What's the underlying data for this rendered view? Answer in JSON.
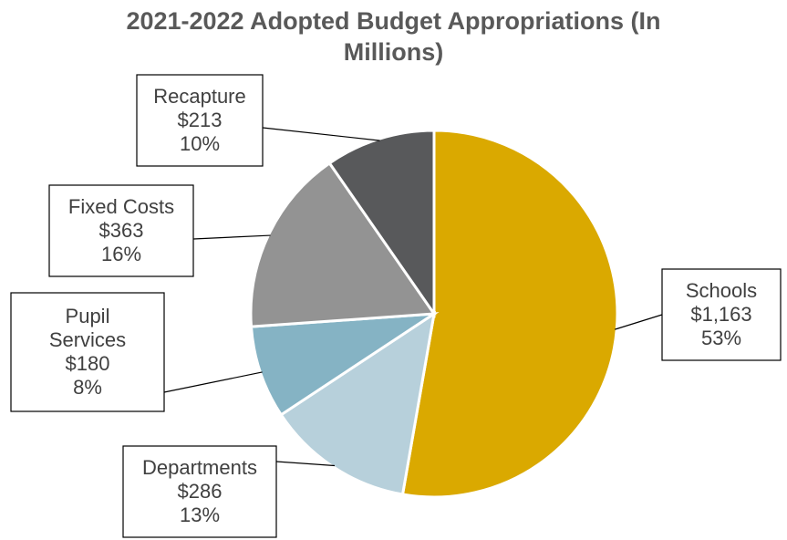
{
  "chart_data": {
    "type": "pie",
    "title": "2021-2022 Adopted Budget Appropriations (In Millions)",
    "title_lines": [
      "2021-2022 Adopted Budget Appropriations (In",
      "Millions)"
    ],
    "slices": [
      {
        "label_lines": [
          "Schools"
        ],
        "value_text": "$1,163",
        "percent_text": "53%",
        "value": 1163,
        "percent": 53,
        "color": "#DAA900"
      },
      {
        "label_lines": [
          "Departments"
        ],
        "value_text": "$286",
        "percent_text": "13%",
        "value": 286,
        "percent": 13,
        "color": "#B7D0DB"
      },
      {
        "label_lines": [
          "Pupil",
          "Services"
        ],
        "value_text": "$180",
        "percent_text": "8%",
        "value": 180,
        "percent": 8,
        "color": "#85B3C4"
      },
      {
        "label_lines": [
          "Fixed Costs"
        ],
        "value_text": "$363",
        "percent_text": "16%",
        "value": 363,
        "percent": 16,
        "color": "#939393"
      },
      {
        "label_lines": [
          "Recapture"
        ],
        "value_text": "$213",
        "percent_text": "10%",
        "value": 213,
        "percent": 10,
        "color": "#58595B"
      }
    ]
  }
}
